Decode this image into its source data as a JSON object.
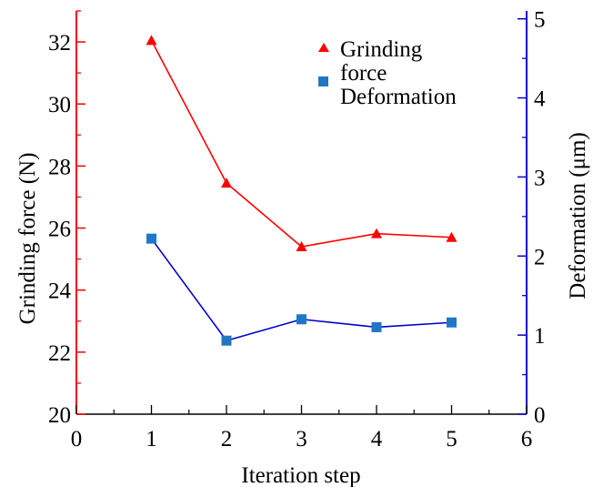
{
  "chart_data": {
    "type": "line",
    "title": "",
    "xlabel": "Iteration step",
    "ylabel_left": "Grinding force (N)",
    "ylabel_right": "Deformation (μm)",
    "xlim": [
      0,
      6
    ],
    "ylim_left": [
      20,
      33
    ],
    "ylim_right": [
      0,
      5.1
    ],
    "x_ticks": [
      "0",
      "1",
      "2",
      "3",
      "4",
      "5",
      "6"
    ],
    "y_left_ticks": [
      "20",
      "22",
      "24",
      "26",
      "28",
      "30",
      "32"
    ],
    "y_right_ticks": [
      "0",
      "1",
      "2",
      "3",
      "4",
      "5"
    ],
    "grid": false,
    "legend_position": "top-right",
    "legend": {
      "line1": "Grinding",
      "line2": "force",
      "line3": "Deformation"
    },
    "series": [
      {
        "name": "Grinding force",
        "axis": "left",
        "color": "#ff0000",
        "marker": "triangle",
        "x": [
          1,
          2,
          3,
          4,
          5
        ],
        "y": [
          32.05,
          27.45,
          25.4,
          25.82,
          25.7
        ]
      },
      {
        "name": "Deformation",
        "axis": "right",
        "color": "#0000cc",
        "marker_color": "#1f77c4",
        "marker": "square",
        "x": [
          1,
          2,
          3,
          4,
          5
        ],
        "y": [
          2.22,
          0.93,
          1.2,
          1.1,
          1.16
        ]
      }
    ]
  }
}
